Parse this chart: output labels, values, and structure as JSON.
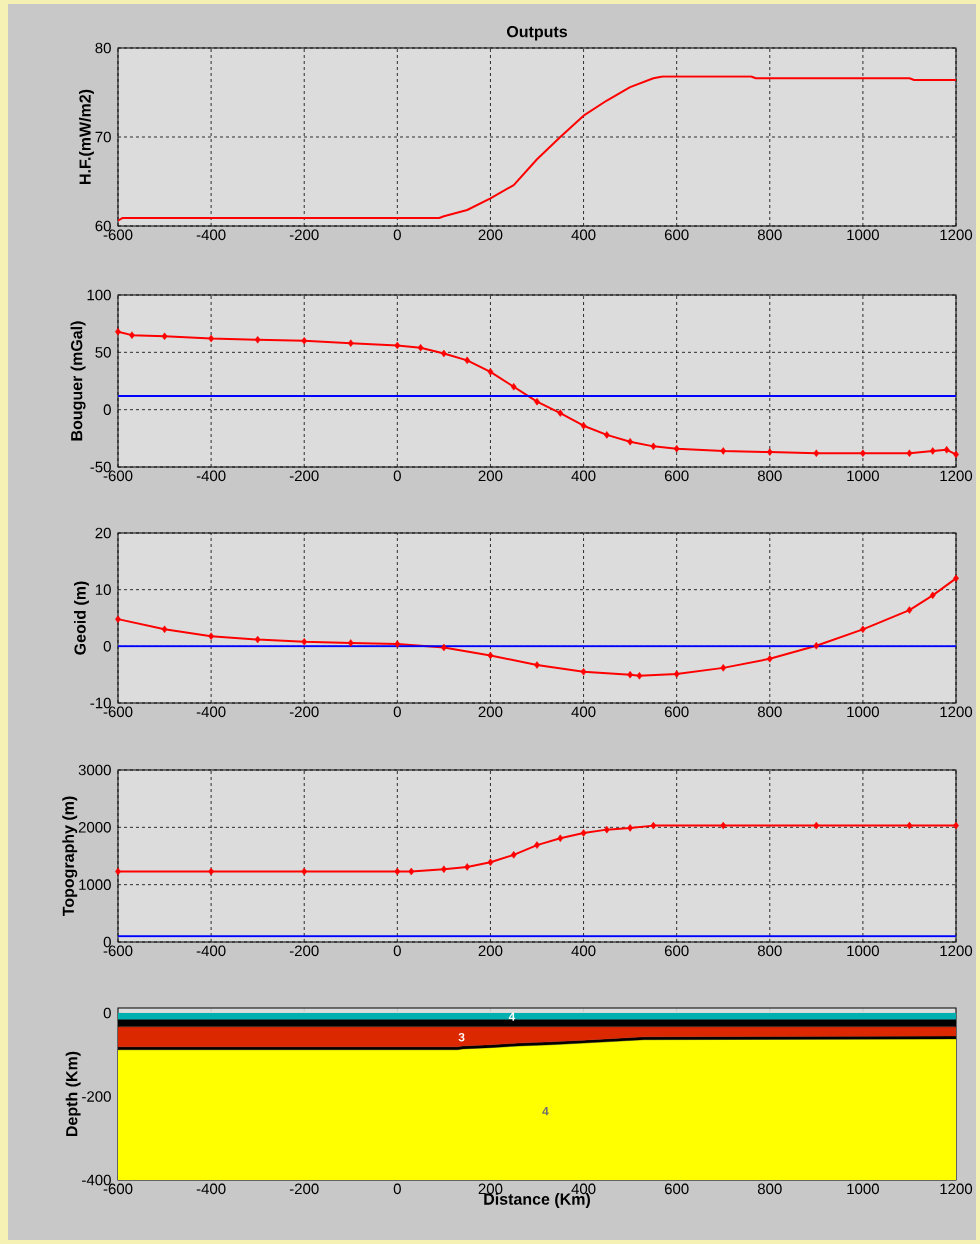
{
  "chart_data": [
    {
      "type": "line",
      "title": "Outputs",
      "ylabel": "H.F.(mW/m2)",
      "xlim": [
        -600,
        1200
      ],
      "xticks": [
        -600,
        -400,
        -200,
        0,
        200,
        400,
        600,
        800,
        1000,
        1200
      ],
      "ylim": [
        60,
        80
      ],
      "yticks": [
        60,
        70,
        80
      ],
      "grid": true,
      "series": [
        {
          "color": "#ff0000",
          "x": [
            -600,
            -590,
            90,
            100,
            150,
            200,
            250,
            300,
            350,
            400,
            450,
            500,
            550,
            570,
            760,
            770,
            1100,
            1110,
            1200
          ],
          "values": [
            60.6,
            60.9,
            60.9,
            61.1,
            61.8,
            63.1,
            64.6,
            67.5,
            70,
            72.4,
            74.1,
            75.6,
            76.6,
            76.8,
            76.8,
            76.6,
            76.6,
            76.4,
            76.4
          ]
        }
      ]
    },
    {
      "type": "line",
      "ylabel": "Bouguer (mGal)",
      "xlim": [
        -600,
        1200
      ],
      "xticks": [
        -600,
        -400,
        -200,
        0,
        200,
        400,
        600,
        800,
        1000,
        1200
      ],
      "ylim": [
        -50,
        100
      ],
      "yticks": [
        -50,
        0,
        50,
        100
      ],
      "grid": true,
      "marker": "diamond",
      "series": [
        {
          "color": "#ff0000",
          "x": [
            -600,
            -570,
            -500,
            -400,
            -300,
            -200,
            -100,
            0,
            50,
            100,
            150,
            200,
            250,
            300,
            350,
            400,
            450,
            500,
            550,
            600,
            700,
            800,
            900,
            1000,
            1100,
            1150,
            1180,
            1200
          ],
          "values": [
            68,
            65,
            64,
            62,
            61,
            60,
            58,
            56,
            54,
            49,
            43,
            33,
            20,
            7,
            -3,
            -14,
            -22,
            -28,
            -32,
            -34,
            -36,
            -37,
            -38,
            -38,
            -38,
            -36,
            -35,
            -39
          ]
        }
      ],
      "ref_lines": [
        {
          "axis": "y",
          "value": 12,
          "color": "#0000ff"
        }
      ]
    },
    {
      "type": "line",
      "ylabel": "Geoid (m)",
      "xlim": [
        -600,
        1200
      ],
      "xticks": [
        -600,
        -400,
        -200,
        0,
        200,
        400,
        600,
        800,
        1000,
        1200
      ],
      "ylim": [
        -10,
        20
      ],
      "yticks": [
        -10,
        0,
        10,
        20
      ],
      "grid": true,
      "marker": "diamond",
      "series": [
        {
          "color": "#ff0000",
          "x": [
            -600,
            -500,
            -400,
            -300,
            -200,
            -100,
            0,
            100,
            200,
            300,
            400,
            500,
            520,
            600,
            700,
            800,
            900,
            1000,
            1100,
            1150,
            1200
          ],
          "values": [
            4.8,
            3,
            1.8,
            1.2,
            0.8,
            0.6,
            0.4,
            -0.2,
            -1.6,
            -3.3,
            -4.5,
            -5,
            -5.2,
            -4.9,
            -3.8,
            -2.2,
            0.1,
            3,
            6.4,
            9,
            12
          ]
        }
      ],
      "ref_lines": [
        {
          "axis": "y",
          "value": 0,
          "color": "#0000ff"
        }
      ]
    },
    {
      "type": "line",
      "ylabel": "Topography (m)",
      "xlim": [
        -600,
        1200
      ],
      "xticks": [
        -600,
        -400,
        -200,
        0,
        200,
        400,
        600,
        800,
        1000,
        1200
      ],
      "ylim": [
        0,
        3000
      ],
      "yticks": [
        0,
        1000,
        2000,
        3000
      ],
      "grid": true,
      "marker": "diamond",
      "series": [
        {
          "color": "#ff0000",
          "x": [
            -600,
            -400,
            -200,
            0,
            30,
            100,
            150,
            200,
            250,
            300,
            350,
            400,
            450,
            500,
            550,
            700,
            900,
            1100,
            1200
          ],
          "values": [
            1230,
            1230,
            1230,
            1230,
            1230,
            1270,
            1310,
            1390,
            1520,
            1690,
            1810,
            1900,
            1960,
            1990,
            2030,
            2030,
            2030,
            2030,
            2030
          ]
        }
      ],
      "ref_lines": [
        {
          "axis": "y",
          "value": 100,
          "color": "#0000ff"
        }
      ]
    },
    {
      "type": "area",
      "stacked": true,
      "xlabel": "Distance (Km)",
      "ylabel": "Depth (Km)",
      "xlim": [
        -600,
        1200
      ],
      "xticks": [
        -600,
        -400,
        -200,
        0,
        200,
        400,
        600,
        800,
        1000,
        1200
      ],
      "ylim": [
        -400,
        12
      ],
      "yticks": [
        -400,
        -200,
        0
      ],
      "x": [
        -600,
        130,
        140,
        200,
        260,
        330,
        400,
        530,
        1200
      ],
      "series": [
        {
          "color": "#00b0b0",
          "values": [
            -15,
            -15,
            -15,
            -15,
            -15,
            -15,
            -15,
            -15,
            -15
          ]
        },
        {
          "color": "#000000",
          "values": [
            -18,
            -18,
            -18,
            -18,
            -18,
            -18,
            -18,
            -18,
            -18
          ]
        },
        {
          "color": "#dc2800",
          "values": [
            -48,
            -48,
            -46,
            -43,
            -39,
            -36,
            -32,
            -24,
            -22
          ]
        },
        {
          "color": "#000000",
          "values": [
            -7,
            -7,
            -7,
            -7,
            -7,
            -7,
            -7,
            -7,
            -7
          ]
        },
        {
          "color": "#ffff00",
          "values": [
            -312,
            -312,
            -314,
            -317,
            -321,
            -324,
            -328,
            -336,
            -338
          ]
        }
      ],
      "annotations": [
        "4",
        "3",
        "4"
      ]
    }
  ]
}
